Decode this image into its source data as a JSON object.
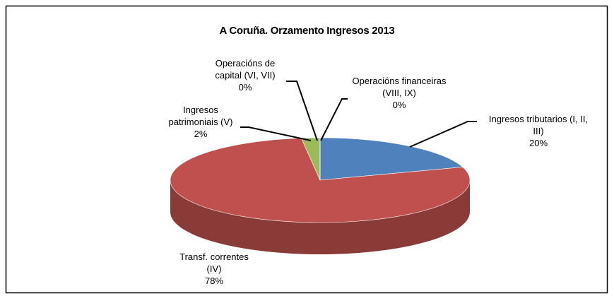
{
  "chart_data": {
    "type": "pie",
    "title": "A Coruña. Orzamento Ingresos 2013",
    "categories": [
      "Ingresos tributarios (I, II, III)",
      "Transf. correntes (IV)",
      "Ingresos patrimoniais (V)",
      "Operacións de capital (VI, VII)",
      "Operacións financeiras (VIII, IX)"
    ],
    "values": [
      20,
      78,
      2,
      0,
      0
    ],
    "value_labels": [
      "20%",
      "78%",
      "2%",
      "0%",
      "0%"
    ],
    "colors": [
      "#4f81bd",
      "#c0504d",
      "#9bbb59",
      "#8064a2",
      "#4bacc6"
    ]
  }
}
